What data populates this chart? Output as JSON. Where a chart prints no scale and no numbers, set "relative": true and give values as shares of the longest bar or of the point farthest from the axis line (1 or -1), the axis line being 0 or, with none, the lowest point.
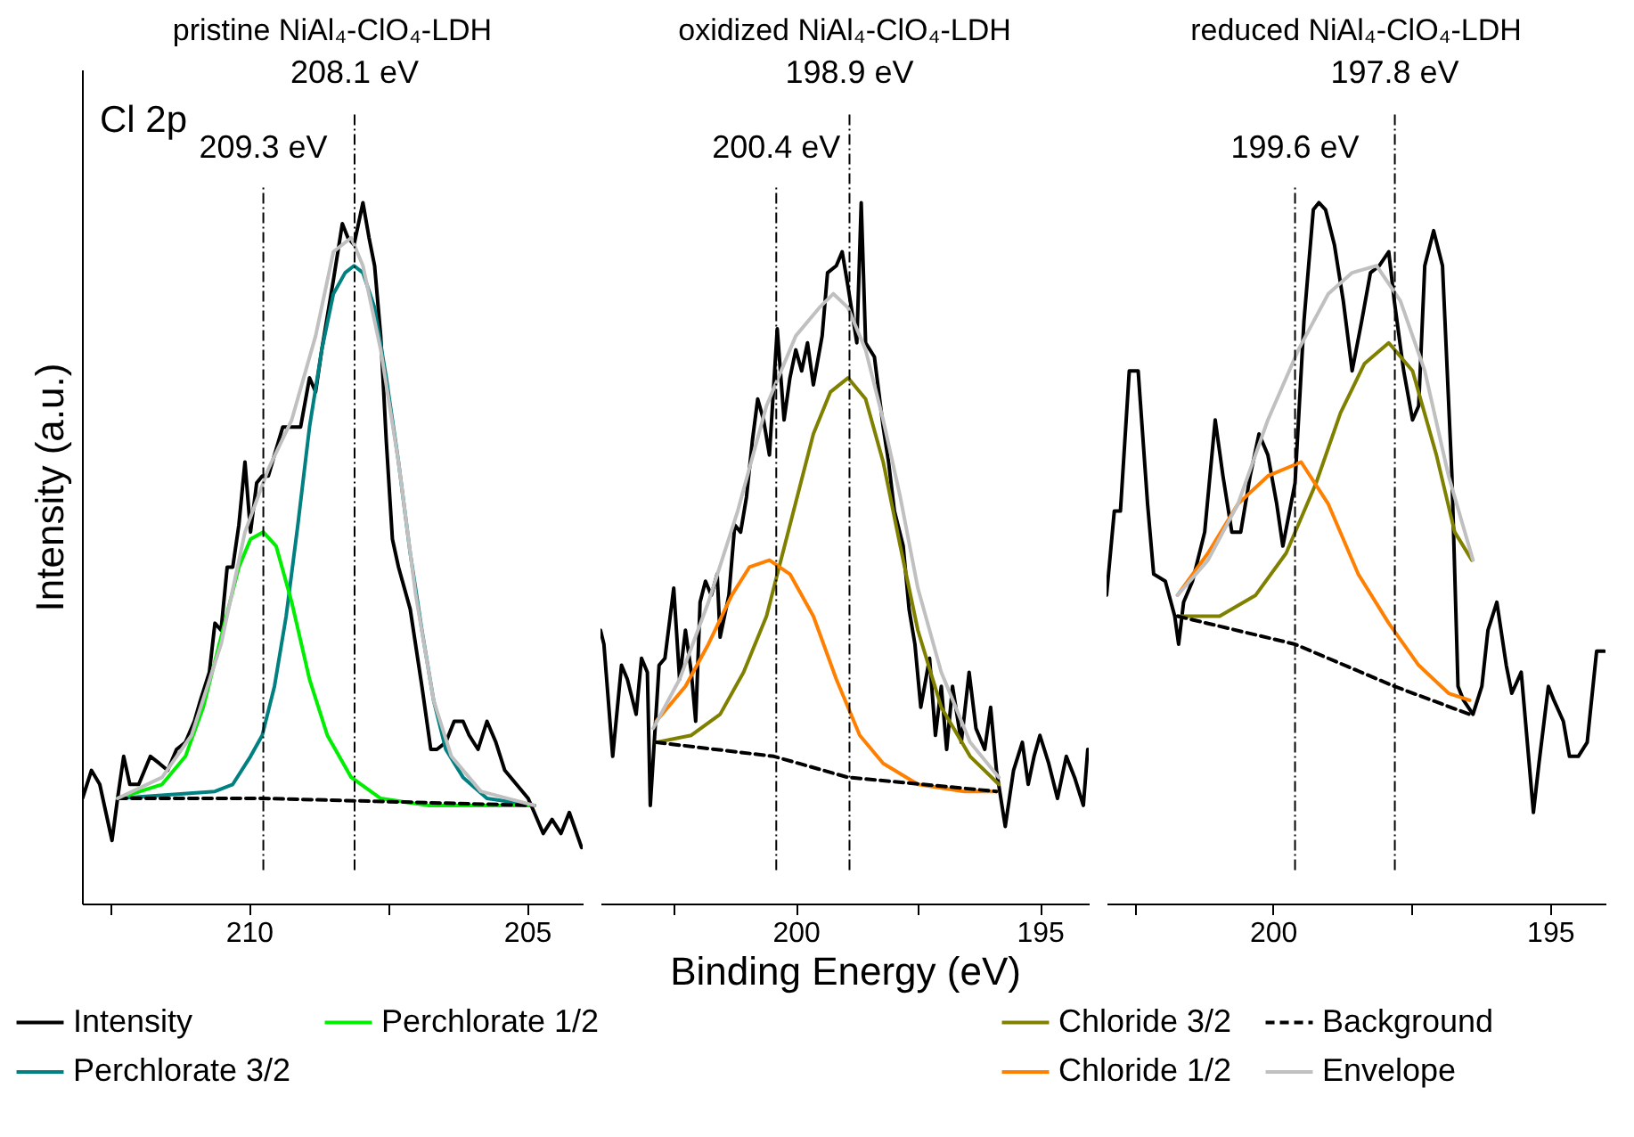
{
  "chart_data": [
    {
      "type": "line",
      "title": "pristine NiAl₄-ClO₄-LDH",
      "ylabel": "Intensity (a.u.)",
      "relative": true,
      "xlim": [
        213,
        204
      ],
      "xticks": [
        {
          "value": 212.5,
          "label": null
        },
        210,
        {
          "value": 207.5,
          "label": null
        },
        205
      ],
      "legend": "bottom left",
      "annotations": [
        "Cl 2p"
      ],
      "ref_lines": [
        {
          "axis": "x",
          "value": 208.1,
          "label": "208.1 eV"
        },
        {
          "axis": "x",
          "value": 209.74,
          "label": "209.3 eV"
        }
      ],
      "series": [
        {
          "name": "Intensity",
          "color": "#000000",
          "x": [
            212.99,
            212.83,
            212.68,
            212.57,
            212.46,
            212.36,
            212.25,
            212.14,
            211.98,
            211.77,
            211.61,
            211.46,
            211.3,
            211.14,
            210.98,
            210.87,
            210.71,
            210.61,
            210.5,
            210.39,
            210.29,
            210.18,
            210.07,
            209.97,
            209.86,
            209.76,
            209.65,
            209.54,
            209.39,
            209.23,
            209.07,
            208.91,
            208.8,
            208.69,
            208.48,
            208.32,
            208.22,
            208.11,
            207.95,
            207.84,
            207.74,
            207.63,
            207.53,
            207.42,
            207.31,
            207.1,
            206.89,
            206.73,
            206.62,
            206.46,
            206.31,
            206.15,
            206.04,
            205.88,
            205.72,
            205.56,
            205.4,
            205.19,
            204.98,
            204.87,
            204.71,
            204.55,
            204.39,
            204.24,
            204.02
          ],
          "values": [
            0.15,
            0.19,
            0.17,
            0.13,
            0.09,
            0.15,
            0.21,
            0.17,
            0.17,
            0.21,
            0.2,
            0.19,
            0.22,
            0.23,
            0.26,
            0.29,
            0.33,
            0.4,
            0.39,
            0.48,
            0.48,
            0.54,
            0.63,
            0.53,
            0.6,
            0.61,
            0.61,
            0.64,
            0.68,
            0.68,
            0.68,
            0.75,
            0.73,
            0.79,
            0.89,
            0.97,
            0.95,
            0.94,
            1.0,
            0.95,
            0.91,
            0.81,
            0.66,
            0.52,
            0.48,
            0.42,
            0.31,
            0.22,
            0.22,
            0.23,
            0.26,
            0.26,
            0.24,
            0.22,
            0.26,
            0.23,
            0.19,
            0.17,
            0.15,
            0.13,
            0.1,
            0.12,
            0.1,
            0.13,
            0.08
          ]
        },
        {
          "name": "Perchlorate 3/2",
          "color": "#008080",
          "x": [
            212.36,
            210.61,
            210.29,
            209.97,
            209.76,
            209.54,
            209.33,
            209.12,
            208.91,
            208.69,
            208.48,
            208.27,
            208.11,
            207.95,
            207.74,
            207.53,
            207.31,
            207.1,
            206.89,
            206.68,
            206.46,
            206.15,
            205.72,
            204.87
          ],
          "values": [
            0.15,
            0.16,
            0.17,
            0.21,
            0.24,
            0.31,
            0.41,
            0.54,
            0.68,
            0.79,
            0.87,
            0.9,
            0.91,
            0.9,
            0.85,
            0.75,
            0.63,
            0.5,
            0.39,
            0.29,
            0.22,
            0.18,
            0.15,
            0.14
          ]
        },
        {
          "name": "Perchlorate 1/2",
          "color": "#00ee00",
          "x": [
            212.36,
            211.56,
            211.14,
            210.82,
            210.5,
            210.18,
            209.97,
            209.74,
            209.51,
            209.23,
            208.91,
            208.59,
            208.16,
            207.63,
            206.78,
            204.87
          ],
          "values": [
            0.15,
            0.17,
            0.21,
            0.28,
            0.38,
            0.48,
            0.52,
            0.53,
            0.51,
            0.43,
            0.32,
            0.24,
            0.18,
            0.15,
            0.14,
            0.14
          ]
        },
        {
          "color": "#000000",
          "line_style": "dashed",
          "x": [
            212.36,
            209.74,
            204.87
          ],
          "values": [
            0.15,
            0.15,
            0.14
          ]
        },
        {
          "color": "#c0c0c0",
          "x": [
            212.36,
            211.56,
            211.03,
            210.5,
            210.07,
            209.65,
            209.23,
            208.8,
            208.48,
            208.16,
            207.95,
            207.63,
            207.31,
            207.0,
            206.68,
            206.36,
            205.83,
            204.87
          ],
          "values": [
            0.15,
            0.18,
            0.24,
            0.37,
            0.53,
            0.62,
            0.69,
            0.81,
            0.93,
            0.95,
            0.91,
            0.79,
            0.63,
            0.44,
            0.29,
            0.21,
            0.16,
            0.14
          ]
        }
      ]
    },
    {
      "type": "line",
      "title": "oxidized NiAl₄-ClO₄-LDH",
      "xlabel": "Binding Energy (eV)",
      "relative": true,
      "xlim": [
        204,
        194
      ],
      "xticks": [
        {
          "value": 202.5,
          "label": null
        },
        200,
        {
          "value": 197.5,
          "label": null
        },
        195
      ],
      "ref_lines": [
        {
          "axis": "x",
          "value": 198.9,
          "label": "198.9 eV"
        },
        {
          "axis": "x",
          "value": 200.4,
          "label": "200.4 eV"
        }
      ],
      "series": [
        {
          "color": "#000000",
          "x": [
            204.0,
            203.93,
            203.75,
            203.57,
            203.45,
            203.27,
            203.16,
            203.04,
            202.98,
            202.8,
            202.68,
            202.5,
            202.38,
            202.26,
            202.14,
            202.05,
            201.96,
            201.85,
            201.73,
            201.61,
            201.55,
            201.37,
            201.25,
            201.13,
            201.01,
            200.89,
            200.78,
            200.66,
            200.54,
            200.38,
            200.24,
            200.12,
            200.0,
            199.88,
            199.76,
            199.64,
            199.46,
            199.35,
            199.17,
            199.05,
            198.93,
            198.75,
            198.66,
            198.57,
            198.39,
            198.21,
            198.1,
            197.98,
            197.8,
            197.68,
            197.56,
            197.44,
            197.26,
            197.14,
            197.02,
            196.91,
            196.79,
            196.61,
            196.45,
            196.31,
            196.13,
            196.01,
            195.89,
            195.71,
            195.54,
            195.36,
            195.24,
            195.12,
            195.0,
            194.82,
            194.64,
            194.46,
            194.29,
            194.11,
            194.02
          ],
          "values": [
            0.39,
            0.37,
            0.21,
            0.34,
            0.32,
            0.27,
            0.35,
            0.33,
            0.14,
            0.34,
            0.35,
            0.45,
            0.32,
            0.39,
            0.33,
            0.26,
            0.43,
            0.46,
            0.44,
            0.47,
            0.38,
            0.44,
            0.54,
            0.53,
            0.58,
            0.66,
            0.72,
            0.69,
            0.64,
            0.82,
            0.69,
            0.75,
            0.79,
            0.76,
            0.8,
            0.74,
            0.81,
            0.9,
            0.91,
            0.93,
            0.88,
            0.8,
            1.0,
            0.8,
            0.78,
            0.68,
            0.63,
            0.56,
            0.51,
            0.42,
            0.37,
            0.28,
            0.35,
            0.24,
            0.31,
            0.22,
            0.31,
            0.23,
            0.33,
            0.25,
            0.22,
            0.28,
            0.19,
            0.11,
            0.19,
            0.23,
            0.17,
            0.21,
            0.24,
            0.2,
            0.15,
            0.21,
            0.18,
            0.14,
            0.22
          ]
        },
        {
          "color": "#808000",
          "x": [
            202.86,
            202.14,
            201.55,
            201.07,
            200.6,
            200.12,
            199.64,
            199.29,
            198.93,
            198.57,
            198.21,
            197.86,
            197.5,
            197.02,
            196.43,
            195.84
          ],
          "values": [
            0.23,
            0.24,
            0.27,
            0.33,
            0.41,
            0.54,
            0.67,
            0.73,
            0.75,
            0.72,
            0.63,
            0.51,
            0.39,
            0.28,
            0.21,
            0.17
          ]
        },
        {
          "color": "#ff8000",
          "x": [
            202.86,
            202.26,
            201.79,
            201.31,
            200.95,
            200.54,
            200.12,
            199.64,
            199.17,
            198.69,
            198.21,
            197.5,
            196.55,
            195.89
          ],
          "values": [
            0.26,
            0.31,
            0.37,
            0.44,
            0.48,
            0.49,
            0.47,
            0.41,
            0.32,
            0.24,
            0.2,
            0.17,
            0.16,
            0.16
          ]
        },
        {
          "color": "#000000",
          "line_style": "dashed",
          "x": [
            202.86,
            200.45,
            198.93,
            195.89
          ],
          "values": [
            0.23,
            0.21,
            0.18,
            0.16
          ]
        },
        {
          "color": "#c0c0c0",
          "x": [
            202.92,
            202.38,
            201.79,
            201.19,
            200.6,
            200.0,
            199.52,
            199.23,
            198.93,
            198.57,
            198.21,
            197.86,
            197.5,
            197.02,
            196.43,
            195.84
          ],
          "values": [
            0.25,
            0.32,
            0.43,
            0.56,
            0.71,
            0.81,
            0.85,
            0.87,
            0.85,
            0.79,
            0.69,
            0.58,
            0.45,
            0.33,
            0.23,
            0.18
          ]
        }
      ]
    },
    {
      "type": "line",
      "title": "reduced NiAl₄-ClO₄-LDH",
      "relative": true,
      "xlim": [
        203,
        194
      ],
      "xticks": [
        {
          "value": 202.5,
          "label": null
        },
        200,
        {
          "value": 197.5,
          "label": null
        },
        195
      ],
      "legend": "bottom",
      "ref_lines": [
        {
          "axis": "x",
          "value": 197.8,
          "label": "197.8 eV"
        },
        {
          "axis": "x",
          "value": 199.6,
          "label": "199.6 eV"
        }
      ],
      "series": [
        {
          "color": "#000000",
          "x": [
            203.0,
            202.86,
            202.75,
            202.59,
            202.43,
            202.26,
            202.15,
            201.94,
            201.77,
            201.7,
            201.61,
            201.45,
            201.23,
            201.04,
            200.9,
            200.74,
            200.58,
            200.41,
            200.25,
            200.09,
            199.93,
            199.82,
            199.6,
            199.44,
            199.27,
            199.17,
            199.05,
            198.89,
            198.73,
            198.57,
            198.4,
            198.24,
            198.08,
            197.91,
            197.81,
            197.64,
            197.48,
            197.37,
            197.26,
            197.1,
            196.94,
            196.77,
            196.66,
            196.56,
            196.39,
            196.23,
            196.12,
            195.96,
            195.79,
            195.69,
            195.52,
            195.3,
            195.2,
            195.03,
            194.93,
            194.76,
            194.65,
            194.49,
            194.33,
            194.16,
            194.02
          ],
          "values": [
            0.44,
            0.56,
            0.56,
            0.76,
            0.76,
            0.57,
            0.47,
            0.46,
            0.41,
            0.37,
            0.43,
            0.46,
            0.53,
            0.69,
            0.61,
            0.53,
            0.53,
            0.61,
            0.67,
            0.64,
            0.57,
            0.51,
            0.6,
            0.83,
            0.99,
            1.0,
            0.99,
            0.94,
            0.86,
            0.76,
            0.83,
            0.9,
            0.91,
            0.93,
            0.86,
            0.76,
            0.69,
            0.71,
            0.91,
            0.96,
            0.91,
            0.61,
            0.31,
            0.29,
            0.27,
            0.31,
            0.39,
            0.43,
            0.34,
            0.3,
            0.33,
            0.13,
            0.2,
            0.31,
            0.29,
            0.26,
            0.21,
            0.21,
            0.23,
            0.36,
            0.36
          ]
        },
        {
          "name": "Chloride 3/2",
          "color": "#808000",
          "x": [
            201.72,
            200.96,
            200.31,
            199.76,
            199.22,
            198.78,
            198.35,
            197.91,
            197.48,
            197.05,
            196.72,
            196.41
          ],
          "values": [
            0.41,
            0.41,
            0.44,
            0.5,
            0.6,
            0.7,
            0.77,
            0.8,
            0.76,
            0.64,
            0.53,
            0.49
          ]
        },
        {
          "name": "Chloride 1/2",
          "color": "#ff8000",
          "x": [
            201.72,
            201.17,
            200.63,
            200.09,
            199.49,
            199.0,
            198.46,
            197.91,
            197.37,
            196.83,
            196.45
          ],
          "values": [
            0.44,
            0.5,
            0.57,
            0.61,
            0.63,
            0.57,
            0.47,
            0.4,
            0.34,
            0.3,
            0.29
          ]
        },
        {
          "name": "Background",
          "color": "#000000",
          "line_style": "dashed",
          "x": [
            201.72,
            199.6,
            197.81,
            196.45
          ],
          "values": [
            0.41,
            0.37,
            0.31,
            0.27
          ]
        },
        {
          "name": "Envelope",
          "color": "#c0c0c0",
          "x": [
            201.72,
            201.17,
            200.63,
            200.09,
            199.54,
            199.0,
            198.57,
            198.13,
            197.7,
            197.26,
            196.83,
            196.39
          ],
          "values": [
            0.44,
            0.49,
            0.57,
            0.69,
            0.79,
            0.87,
            0.9,
            0.91,
            0.86,
            0.76,
            0.61,
            0.49
          ]
        }
      ]
    }
  ]
}
